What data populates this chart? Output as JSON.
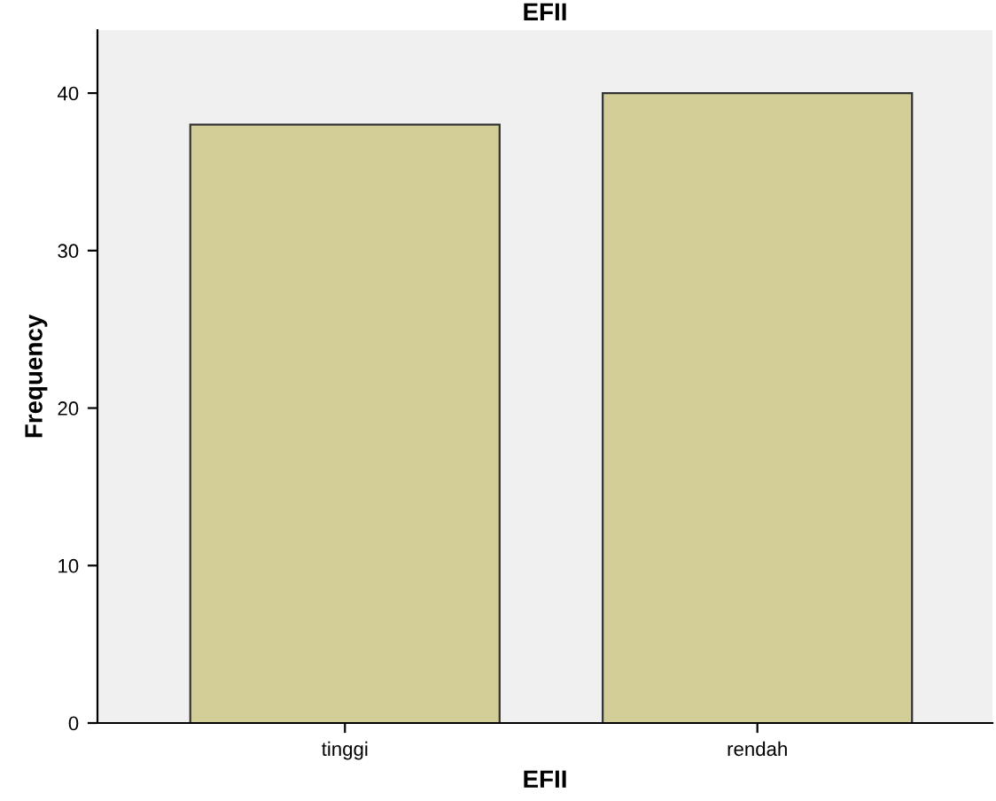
{
  "chart_data": {
    "type": "bar",
    "title": "EFII",
    "xlabel": "EFII",
    "ylabel": "Frequency",
    "categories": [
      "tinggi",
      "rendah"
    ],
    "values": [
      38,
      40
    ],
    "color": "#d3ce97",
    "ylim": [
      0,
      44
    ],
    "yticks": [
      0,
      10,
      20,
      30,
      40
    ],
    "grid": false,
    "legend": false
  }
}
